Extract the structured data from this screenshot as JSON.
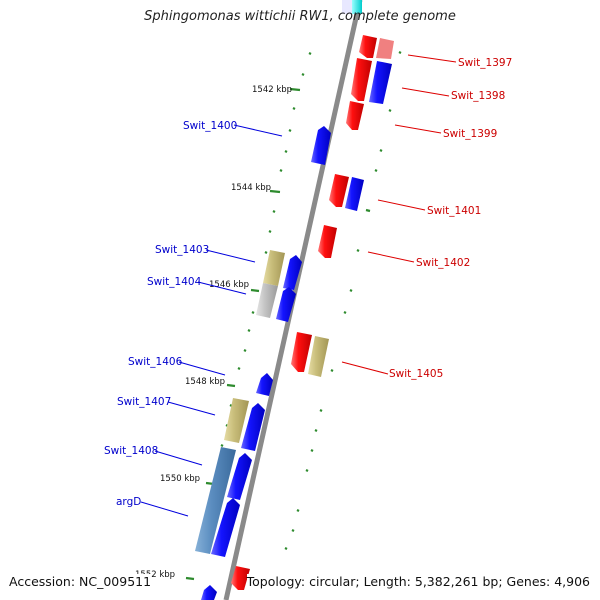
{
  "title": "Sphingomonas wittichii RW1, complete genome",
  "footer": {
    "accession": "Accession: NC_009511",
    "summary": "Topology: circular; Length: 5,382,261 bp; Genes: 4,906"
  },
  "colors": {
    "forward_cds": "#0000ff",
    "reverse_cds": "#ff0000",
    "rna_feature": "#c8bd7a",
    "pseudo_feature": "#c0c0c0",
    "selected_feature": "#5b8dc0",
    "backbone": "#808080",
    "tick": "#2e8b2e",
    "forward_label": "#0000cc",
    "reverse_label": "#cc0000"
  },
  "ticks": [
    {
      "label": "1542 kbp"
    },
    {
      "label": "1544 kbp"
    },
    {
      "label": "1546 kbp"
    },
    {
      "label": "1548 kbp"
    },
    {
      "label": "1550 kbp"
    },
    {
      "label": "1552 kbp"
    }
  ],
  "features": [
    {
      "label": "Swit_1397",
      "strand": "reverse"
    },
    {
      "label": "Swit_1398",
      "strand": "reverse"
    },
    {
      "label": "Swit_1399",
      "strand": "reverse"
    },
    {
      "label": "Swit_1400",
      "strand": "forward"
    },
    {
      "label": "Swit_1401",
      "strand": "reverse"
    },
    {
      "label": "Swit_1402",
      "strand": "reverse"
    },
    {
      "label": "Swit_1403",
      "strand": "forward"
    },
    {
      "label": "Swit_1404",
      "strand": "forward"
    },
    {
      "label": "Swit_1405",
      "strand": "reverse"
    },
    {
      "label": "Swit_1406",
      "strand": "forward"
    },
    {
      "label": "Swit_1407",
      "strand": "forward"
    },
    {
      "label": "Swit_1408",
      "strand": "forward"
    },
    {
      "label": "argD",
      "strand": "forward"
    }
  ]
}
